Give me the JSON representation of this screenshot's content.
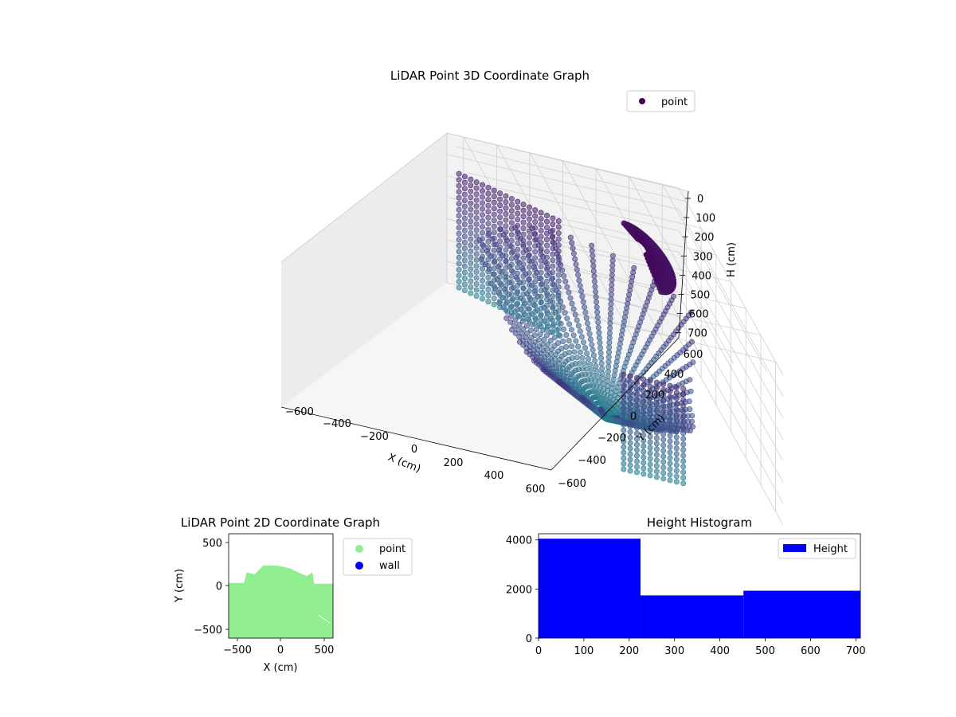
{
  "chart_data": [
    {
      "type": "scatter",
      "title": "LiDAR Point 3D Coordinate Graph",
      "xlabel": "X (cm)",
      "ylabel": "Y (cm)",
      "zlabel": "H (cm)",
      "xlim": [
        -700,
        700
      ],
      "ylim": [
        -700,
        700
      ],
      "zlim": [
        0,
        700
      ],
      "z_inverted": true,
      "xticks": [
        "−600",
        "−400",
        "−200",
        "0",
        "200",
        "400",
        "600"
      ],
      "yticks": [
        "−600",
        "−400",
        "−200",
        "0",
        "200",
        "400",
        "600"
      ],
      "zticks": [
        "0",
        "100",
        "200",
        "300",
        "400",
        "500",
        "600",
        "700"
      ],
      "legend": {
        "entries": [
          "point"
        ],
        "placement": "top-right"
      },
      "colormap": "viridis",
      "grid": true,
      "series": [
        {
          "name": "point",
          "description_points": [
            {
              "x": -600,
              "y": -600,
              "h": 400
            },
            {
              "x": -600,
              "y": -300,
              "h": 200
            },
            {
              "x": -500,
              "y": -600,
              "h": 500
            },
            {
              "x": -400,
              "y": -500,
              "h": 600
            },
            {
              "x": -200,
              "y": -600,
              "h": 650
            },
            {
              "x": 0,
              "y": -550,
              "h": 650
            },
            {
              "x": 200,
              "y": -500,
              "h": 650
            },
            {
              "x": 400,
              "y": -400,
              "h": 600
            },
            {
              "x": 500,
              "y": -200,
              "h": 500
            },
            {
              "x": 550,
              "y": 0,
              "h": 300
            },
            {
              "x": 0,
              "y": 0,
              "h": 700
            },
            {
              "x": 100,
              "y": 100,
              "h": 650
            },
            {
              "x": -100,
              "y": 200,
              "h": 100
            },
            {
              "x": 100,
              "y": 300,
              "h": 50
            }
          ]
        }
      ]
    },
    {
      "type": "scatter",
      "title": "LiDAR Point 2D Coordinate Graph",
      "xlabel": "X (cm)",
      "ylabel": "Y (cm)",
      "xlim": [
        -600,
        600
      ],
      "ylim": [
        -600,
        600
      ],
      "xticks": [
        "−500",
        "0",
        "500"
      ],
      "yticks": [
        "−500",
        "0",
        "500"
      ],
      "legend": {
        "entries": [
          "point",
          "wall"
        ],
        "placement": "outside-right"
      },
      "series": [
        {
          "name": "point",
          "color": "#90ee90"
        },
        {
          "name": "wall",
          "color": "#0000ff"
        }
      ],
      "point_outline": [
        {
          "x": -600,
          "y": 30
        },
        {
          "x": -420,
          "y": 30
        },
        {
          "x": -390,
          "y": 150
        },
        {
          "x": -300,
          "y": 130
        },
        {
          "x": -200,
          "y": 230
        },
        {
          "x": -50,
          "y": 230
        },
        {
          "x": 100,
          "y": 200
        },
        {
          "x": 200,
          "y": 150
        },
        {
          "x": 300,
          "y": 110
        },
        {
          "x": 360,
          "y": 150
        },
        {
          "x": 380,
          "y": 20
        },
        {
          "x": 600,
          "y": 20
        },
        {
          "x": 600,
          "y": -600
        },
        {
          "x": -600,
          "y": -600
        }
      ]
    },
    {
      "type": "bar",
      "title": "Height Histogram",
      "xlim": [
        0,
        710
      ],
      "ylim": [
        0,
        4250
      ],
      "xticks": [
        "0",
        "100",
        "200",
        "300",
        "400",
        "500",
        "600",
        "700"
      ],
      "yticks": [
        "0",
        "2000",
        "4000"
      ],
      "legend": {
        "entries": [
          "Height"
        ],
        "placement": "top-right"
      },
      "color": "#0000ff",
      "bins": [
        {
          "start": 0,
          "end": 225,
          "count": 4050
        },
        {
          "start": 225,
          "end": 452,
          "count": 1740
        },
        {
          "start": 452,
          "end": 710,
          "count": 1930
        }
      ]
    }
  ]
}
